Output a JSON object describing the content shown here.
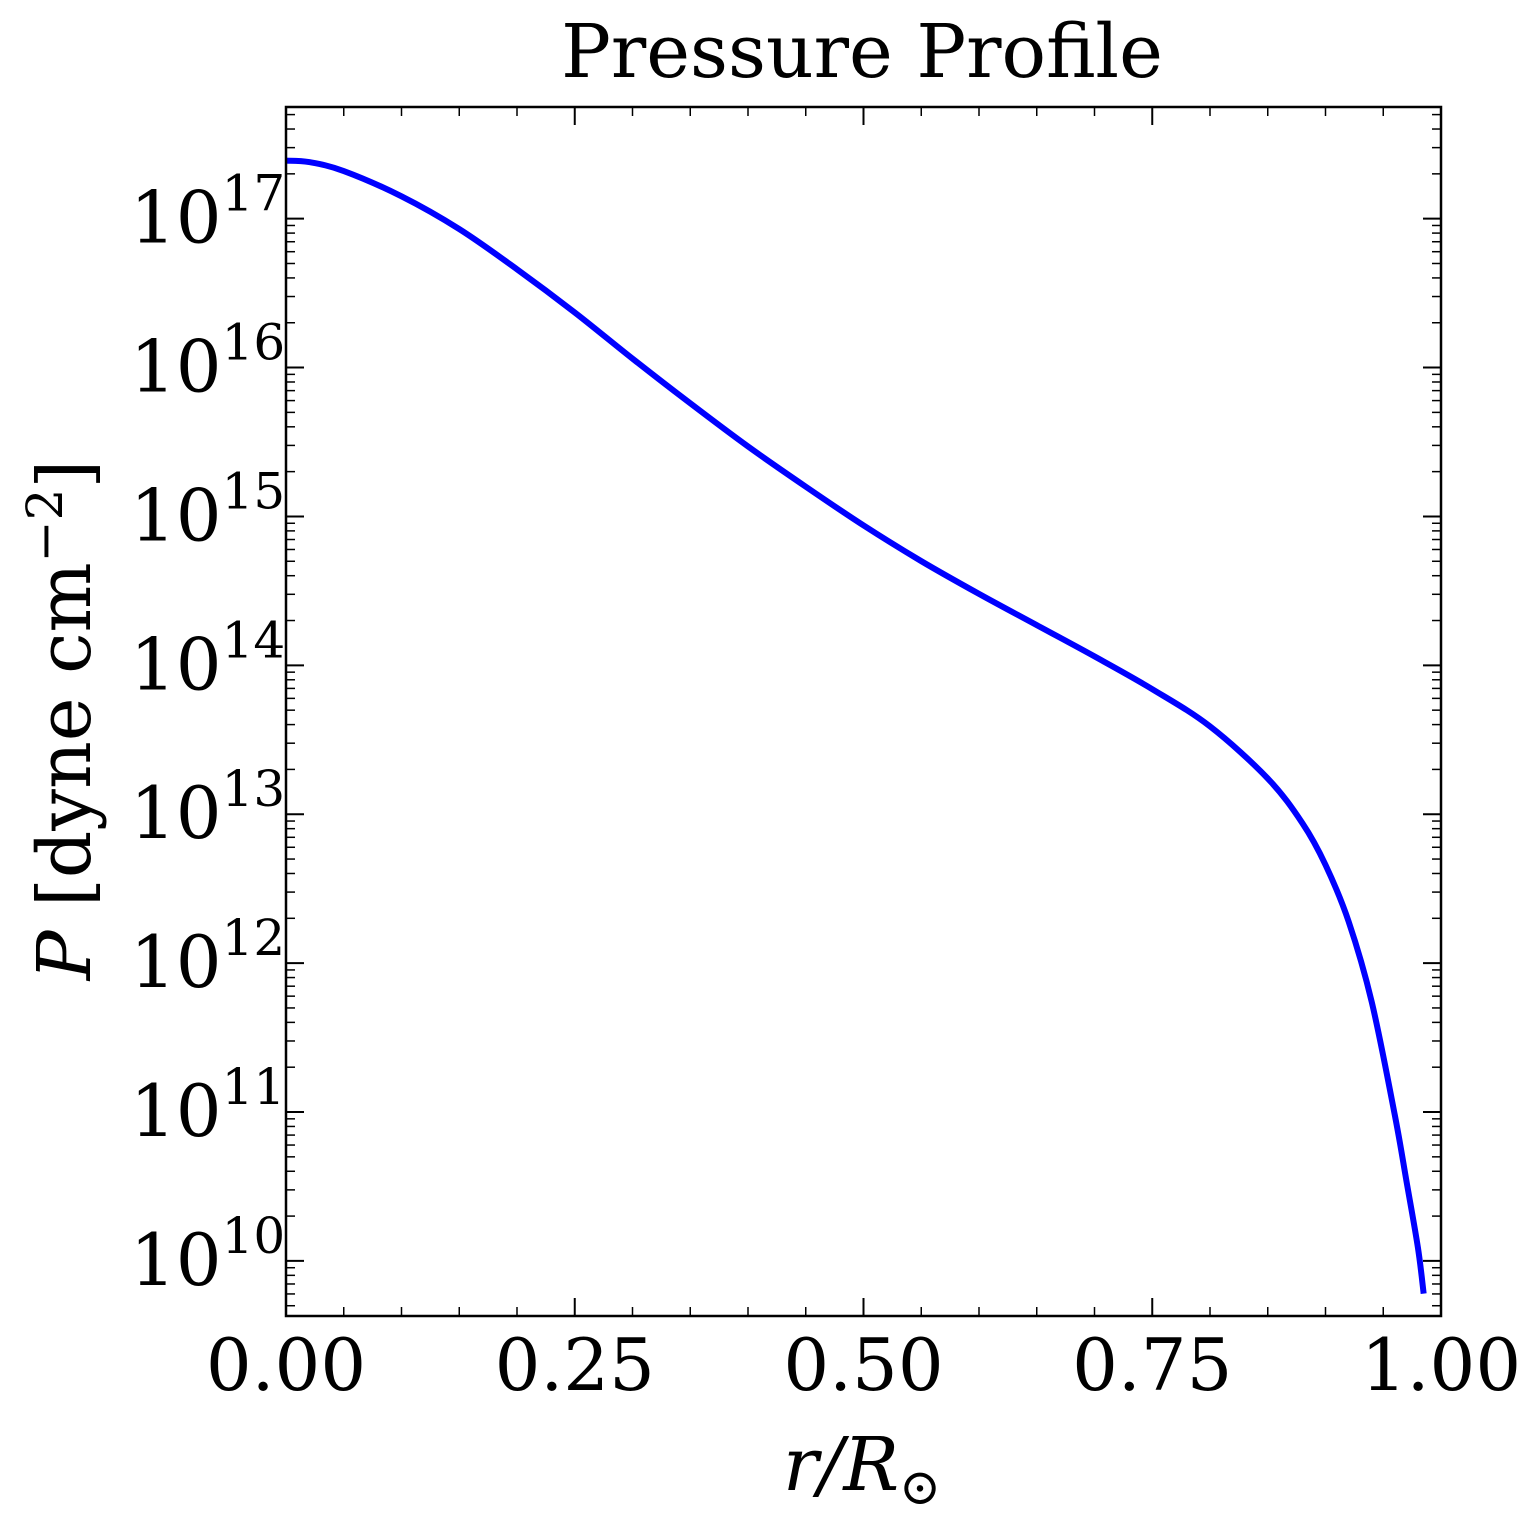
{
  "chart_data": {
    "type": "line",
    "title": "Pressure Profile",
    "xlabel": {
      "main": "r/R",
      "subscript": "⊙"
    },
    "ylabel": {
      "prefix": "P",
      "units": "[dyne cm",
      "exponent": "−2",
      "suffix": "]"
    },
    "xlim": [
      0.0,
      1.0
    ],
    "ylim_log10": [
      9.63,
      17.75
    ],
    "yscale": "log",
    "x_ticks": [
      {
        "value": 0.0,
        "label": "0.00"
      },
      {
        "value": 0.25,
        "label": "0.25"
      },
      {
        "value": 0.5,
        "label": "0.50"
      },
      {
        "value": 0.75,
        "label": "0.75"
      },
      {
        "value": 1.0,
        "label": "1.00"
      }
    ],
    "y_ticks": [
      {
        "exp": 10,
        "base": "10",
        "power": "10"
      },
      {
        "exp": 11,
        "base": "10",
        "power": "11"
      },
      {
        "exp": 12,
        "base": "10",
        "power": "12"
      },
      {
        "exp": 13,
        "base": "10",
        "power": "13"
      },
      {
        "exp": 14,
        "base": "10",
        "power": "14"
      },
      {
        "exp": 15,
        "base": "10",
        "power": "15"
      },
      {
        "exp": 16,
        "base": "10",
        "power": "16"
      },
      {
        "exp": 17,
        "base": "10",
        "power": "17"
      }
    ],
    "grid": false,
    "line_color": "#0000ff",
    "series": [
      {
        "x": [
          0.0,
          0.02,
          0.05,
          0.1,
          0.15,
          0.2,
          0.25,
          0.3,
          0.35,
          0.4,
          0.45,
          0.5,
          0.55,
          0.6,
          0.65,
          0.7,
          0.75,
          0.8,
          0.85,
          0.88,
          0.9,
          0.92,
          0.94,
          0.96,
          0.97,
          0.98,
          0.985
        ],
        "y_log10": [
          17.39,
          17.38,
          17.32,
          17.15,
          16.93,
          16.66,
          16.37,
          16.06,
          15.76,
          15.47,
          15.2,
          14.94,
          14.7,
          14.48,
          14.27,
          14.06,
          13.84,
          13.59,
          13.24,
          12.94,
          12.66,
          12.28,
          11.74,
          10.98,
          10.54,
          10.09,
          9.78
        ]
      }
    ]
  }
}
